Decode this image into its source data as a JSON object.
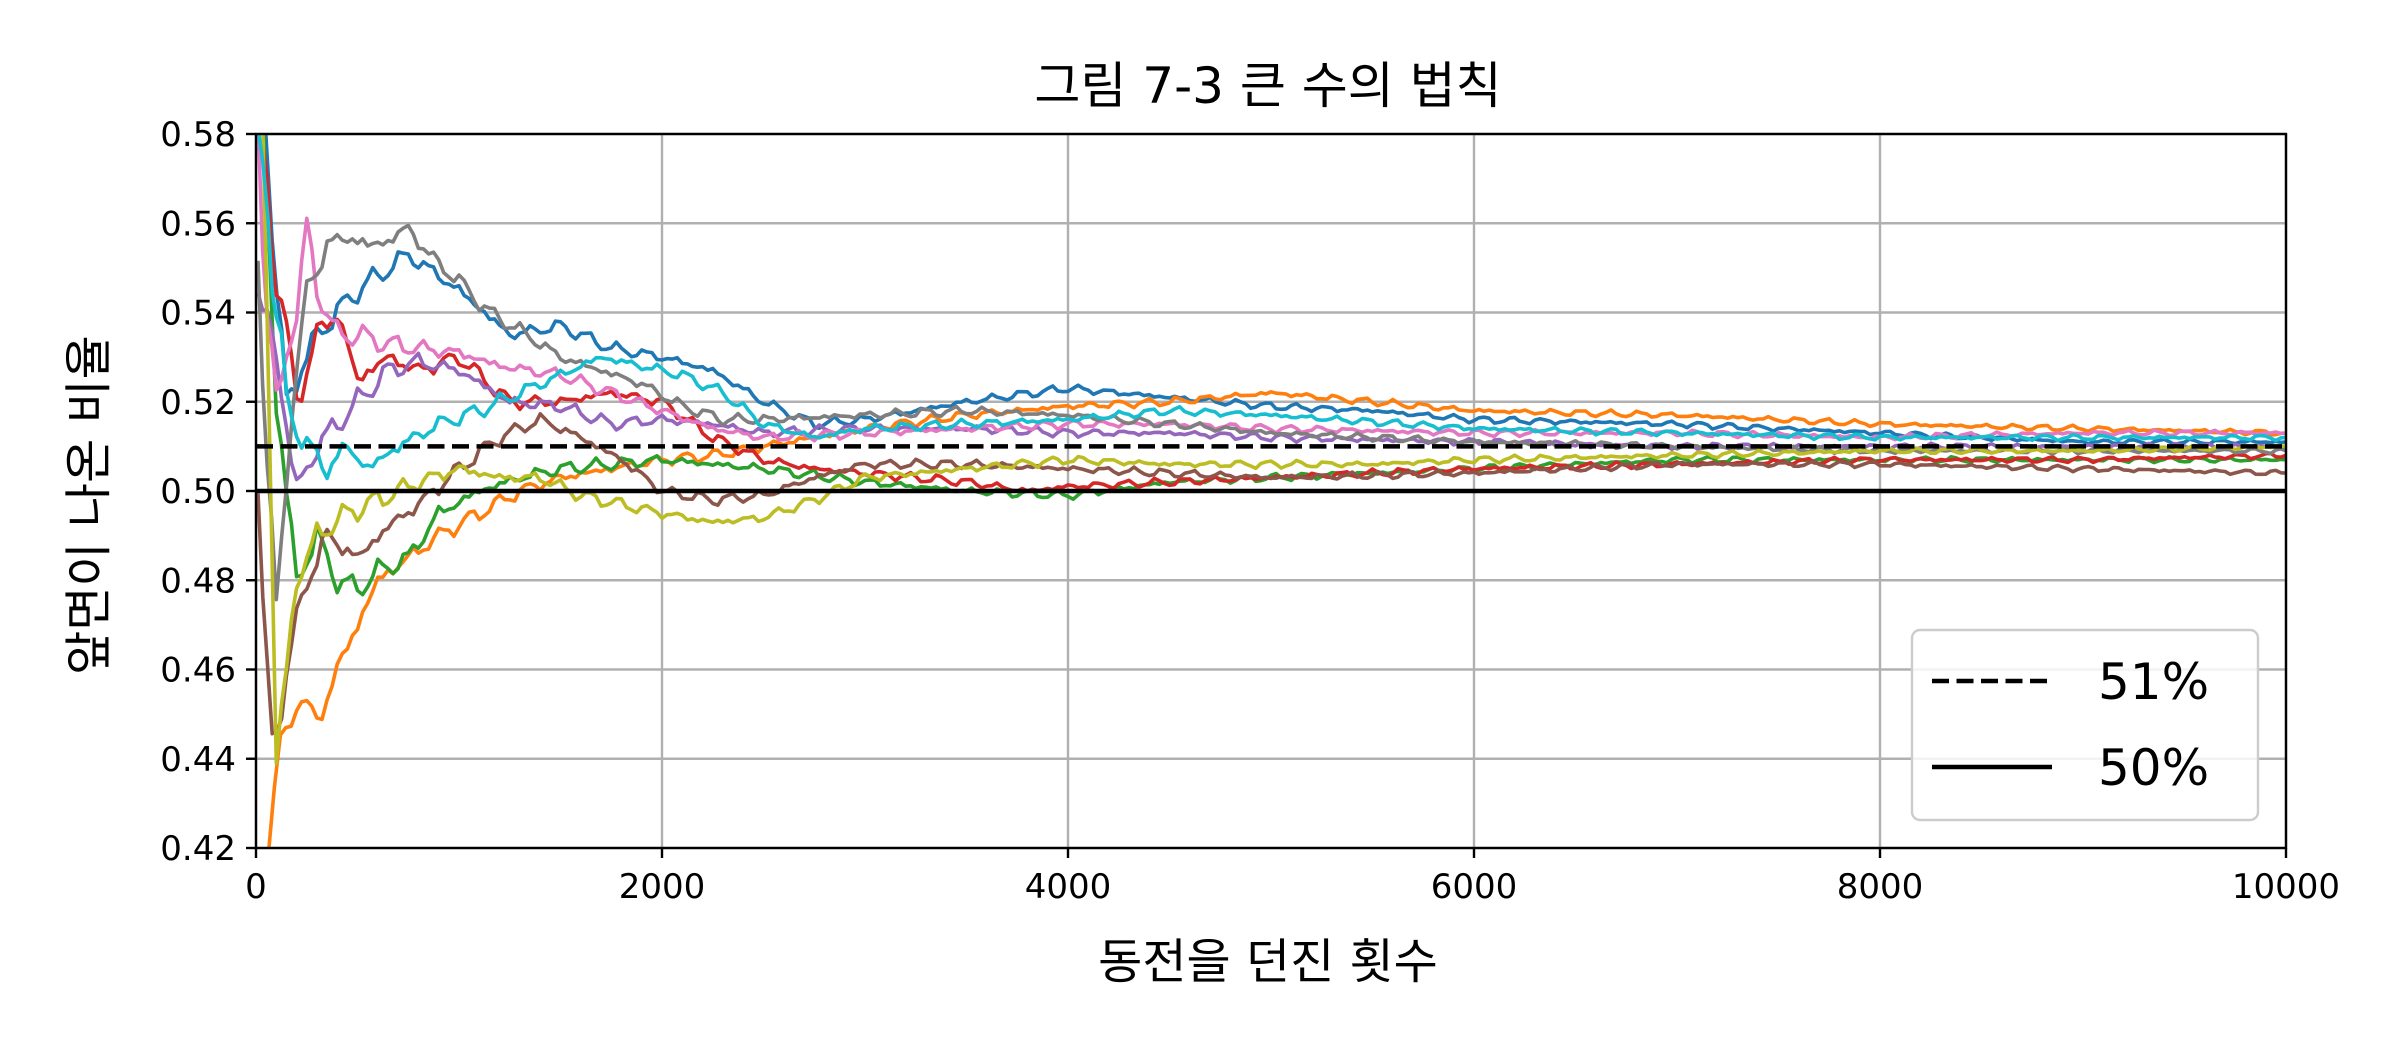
{
  "chart_data": {
    "type": "line",
    "title": "그림 7-3 큰 수의 법칙",
    "xlabel": "동전을 던진 횟수",
    "ylabel": "앞면이 나온 비율",
    "xlim": [
      0,
      10000
    ],
    "ylim": [
      0.42,
      0.58
    ],
    "xticks": [
      "0",
      "2000",
      "4000",
      "6000",
      "8000",
      "10000"
    ],
    "yticks": [
      "0.42",
      "0.44",
      "0.46",
      "0.48",
      "0.50",
      "0.52",
      "0.54",
      "0.56",
      "0.58"
    ],
    "grid": true,
    "legend_position": "lower-right",
    "reference_lines": [
      {
        "name": "51%",
        "y": 0.51,
        "style": "dashed",
        "color": "#000000"
      },
      {
        "name": "50%",
        "y": 0.5,
        "style": "solid",
        "color": "#000000"
      }
    ],
    "series": [
      {
        "color": "#1f77b4",
        "x": [
          10,
          80,
          150,
          300,
          500,
          750,
          1000,
          1250,
          1500,
          1750,
          2000,
          2250,
          2500,
          2750,
          3000,
          3500,
          4000,
          4500,
          5000,
          5500,
          6000,
          7000,
          8000,
          9000,
          10000
        ],
        "y": [
          0.6,
          0.56,
          0.52,
          0.535,
          0.545,
          0.553,
          0.545,
          0.535,
          0.537,
          0.532,
          0.53,
          0.527,
          0.52,
          0.515,
          0.516,
          0.52,
          0.523,
          0.521,
          0.519,
          0.518,
          0.516,
          0.515,
          0.513,
          0.511,
          0.511
        ]
      },
      {
        "color": "#ff7f0e",
        "x": [
          10,
          60,
          120,
          200,
          300,
          400,
          500,
          600,
          750,
          900,
          1100,
          1300,
          1500,
          1750,
          2000,
          2250,
          2500,
          2750,
          3000,
          3500,
          4000,
          4500,
          5000,
          5500,
          6000,
          7000,
          8000,
          9000,
          10000
        ],
        "y": [
          0.4,
          0.42,
          0.44,
          0.455,
          0.448,
          0.46,
          0.47,
          0.48,
          0.485,
          0.49,
          0.495,
          0.5,
          0.503,
          0.505,
          0.507,
          0.508,
          0.51,
          0.512,
          0.514,
          0.517,
          0.519,
          0.52,
          0.522,
          0.52,
          0.518,
          0.517,
          0.515,
          0.514,
          0.513
        ]
      },
      {
        "color": "#2ca02c",
        "x": [
          10,
          100,
          200,
          300,
          400,
          500,
          600,
          750,
          900,
          1100,
          1300,
          1500,
          1750,
          2000,
          2500,
          3000,
          3500,
          4000,
          4500,
          5000,
          6000,
          7000,
          8000,
          9000,
          10000
        ],
        "y": [
          0.6,
          0.52,
          0.48,
          0.49,
          0.48,
          0.478,
          0.482,
          0.485,
          0.495,
          0.5,
          0.503,
          0.505,
          0.506,
          0.507,
          0.505,
          0.502,
          0.5,
          0.499,
          0.502,
          0.503,
          0.505,
          0.507,
          0.507,
          0.507,
          0.507
        ]
      },
      {
        "color": "#d62728",
        "x": [
          10,
          100,
          200,
          300,
          400,
          500,
          650,
          800,
          1000,
          1250,
          1500,
          1750,
          2000,
          2250,
          2500,
          2750,
          3000,
          3500,
          3800,
          4000,
          4500,
          5000,
          6000,
          7000,
          8000,
          9000,
          10000
        ],
        "y": [
          0.58,
          0.55,
          0.52,
          0.535,
          0.54,
          0.525,
          0.53,
          0.527,
          0.53,
          0.52,
          0.52,
          0.522,
          0.52,
          0.512,
          0.507,
          0.505,
          0.504,
          0.502,
          0.5,
          0.501,
          0.502,
          0.503,
          0.505,
          0.506,
          0.507,
          0.507,
          0.508
        ]
      },
      {
        "color": "#9467bd",
        "x": [
          10,
          100,
          200,
          300,
          400,
          500,
          650,
          800,
          1000,
          1250,
          1500,
          1750,
          2000,
          2250,
          2500,
          3000,
          3500,
          4000,
          4500,
          5000,
          6000,
          7000,
          8000,
          9000,
          10000
        ],
        "y": [
          0.55,
          0.53,
          0.5,
          0.51,
          0.515,
          0.52,
          0.527,
          0.529,
          0.527,
          0.52,
          0.519,
          0.515,
          0.516,
          0.515,
          0.513,
          0.514,
          0.514,
          0.513,
          0.513,
          0.512,
          0.511,
          0.51,
          0.51,
          0.51,
          0.51
        ]
      },
      {
        "color": "#8c564b",
        "x": [
          10,
          80,
          150,
          250,
          350,
          500,
          650,
          800,
          1000,
          1200,
          1400,
          1600,
          1800,
          2000,
          2250,
          2500,
          2750,
          3000,
          3500,
          4000,
          4500,
          5000,
          6000,
          7000,
          8000,
          9000,
          10000
        ],
        "y": [
          0.5,
          0.44,
          0.46,
          0.48,
          0.49,
          0.485,
          0.492,
          0.497,
          0.505,
          0.512,
          0.516,
          0.512,
          0.507,
          0.5,
          0.498,
          0.499,
          0.503,
          0.506,
          0.506,
          0.505,
          0.504,
          0.503,
          0.504,
          0.506,
          0.506,
          0.505,
          0.504
        ]
      },
      {
        "color": "#e377c2",
        "x": [
          10,
          100,
          200,
          250,
          300,
          400,
          500,
          650,
          800,
          1000,
          1200,
          1500,
          1750,
          2000,
          2250,
          2500,
          3000,
          3500,
          4000,
          4500,
          5000,
          6000,
          7000,
          8000,
          9000,
          10000
        ],
        "y": [
          0.57,
          0.52,
          0.54,
          0.56,
          0.545,
          0.535,
          0.535,
          0.533,
          0.532,
          0.531,
          0.528,
          0.526,
          0.522,
          0.518,
          0.514,
          0.512,
          0.513,
          0.514,
          0.515,
          0.515,
          0.514,
          0.513,
          0.513,
          0.512,
          0.513,
          0.513
        ]
      },
      {
        "color": "#7f7f7f",
        "x": [
          10,
          100,
          180,
          250,
          350,
          450,
          550,
          650,
          750,
          850,
          1000,
          1150,
          1300,
          1500,
          1700,
          1900,
          2100,
          2300,
          2500,
          3000,
          3500,
          4000,
          4500,
          5000,
          6000,
          7000,
          8000,
          9000,
          10000
        ],
        "y": [
          0.55,
          0.47,
          0.52,
          0.545,
          0.555,
          0.557,
          0.555,
          0.556,
          0.559,
          0.553,
          0.547,
          0.54,
          0.536,
          0.53,
          0.527,
          0.524,
          0.519,
          0.516,
          0.516,
          0.517,
          0.518,
          0.517,
          0.515,
          0.513,
          0.511,
          0.51,
          0.509,
          0.509,
          0.509
        ]
      },
      {
        "color": "#bcbd22",
        "x": [
          10,
          50,
          100,
          200,
          300,
          450,
          600,
          800,
          1000,
          1200,
          1400,
          1600,
          1800,
          2000,
          2250,
          2500,
          2750,
          3000,
          3500,
          4000,
          4500,
          5000,
          5500,
          6000,
          7000,
          8000,
          9000,
          10000
        ],
        "y": [
          0.62,
          0.55,
          0.44,
          0.48,
          0.49,
          0.495,
          0.498,
          0.502,
          0.505,
          0.503,
          0.503,
          0.499,
          0.497,
          0.495,
          0.493,
          0.494,
          0.498,
          0.503,
          0.505,
          0.507,
          0.506,
          0.506,
          0.506,
          0.507,
          0.508,
          0.509,
          0.509,
          0.51
        ]
      },
      {
        "color": "#17becf",
        "x": [
          10,
          60,
          100,
          150,
          250,
          350,
          450,
          550,
          700,
          900,
          1100,
          1300,
          1500,
          1700,
          1900,
          2100,
          2300,
          2500,
          2750,
          3000,
          3500,
          4000,
          4500,
          5000,
          6000,
          7000,
          8000,
          9000,
          10000
        ],
        "y": [
          0.58,
          0.56,
          0.54,
          0.52,
          0.51,
          0.505,
          0.51,
          0.505,
          0.51,
          0.515,
          0.518,
          0.522,
          0.526,
          0.53,
          0.528,
          0.526,
          0.522,
          0.515,
          0.512,
          0.514,
          0.515,
          0.516,
          0.518,
          0.517,
          0.514,
          0.513,
          0.512,
          0.512,
          0.512
        ]
      }
    ]
  }
}
